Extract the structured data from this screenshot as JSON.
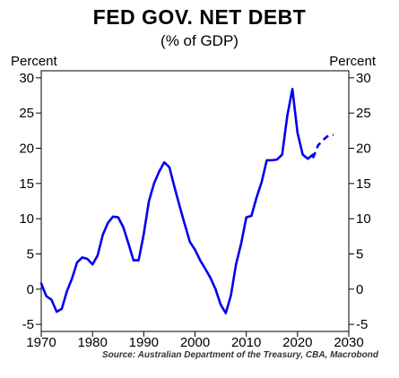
{
  "title": "FED GOV. NET DEBT",
  "subtitle": "(% of GDP)",
  "ylabel_left": "Percent",
  "ylabel_right": "Percent",
  "source": "Source: Australian Department of the Treasury, CBA, Macrobond",
  "chart_data": {
    "type": "line",
    "xlim": [
      1970,
      2030
    ],
    "ylim": [
      -6,
      31
    ],
    "x_ticks": [
      1970,
      1980,
      1990,
      2000,
      2010,
      2020,
      2030
    ],
    "y_ticks": [
      -5,
      0,
      5,
      10,
      15,
      20,
      25,
      30
    ],
    "grid": false,
    "line_color": "#0000ee",
    "series": [
      {
        "style": "solid",
        "x": [
          1970,
          1971,
          1972,
          1973,
          1974,
          1975,
          1976,
          1977,
          1978,
          1979,
          1980,
          1981,
          1982,
          1983,
          1984,
          1985,
          1986,
          1987,
          1988,
          1989,
          1990,
          1991,
          1992,
          1993,
          1994,
          1995,
          1996,
          1997,
          1998,
          1999,
          2000,
          2001,
          2002,
          2003,
          2004,
          2005,
          2006,
          2007,
          2008,
          2009,
          2010,
          2011,
          2012,
          2013,
          2014,
          2015,
          2016,
          2017,
          2018,
          2019,
          2020,
          2021,
          2022,
          2023
        ],
        "y": [
          0.8,
          -1.0,
          -1.5,
          -3.2,
          -2.8,
          -0.3,
          1.5,
          3.8,
          4.5,
          4.3,
          3.5,
          4.8,
          7.7,
          9.4,
          10.3,
          10.2,
          8.8,
          6.5,
          4.1,
          4.1,
          7.8,
          12.5,
          15.0,
          16.7,
          18.0,
          17.3,
          14.5,
          11.8,
          9.2,
          6.7,
          5.6,
          4.1,
          2.9,
          1.6,
          0.0,
          -2.2,
          -3.4,
          -0.9,
          3.5,
          6.5,
          10.2,
          10.4,
          13.0,
          15.2,
          18.3,
          18.3,
          18.4,
          19.1,
          24.6,
          28.4,
          22.2,
          19.1,
          18.5,
          19.1
        ]
      },
      {
        "style": "dashed",
        "x": [
          2023,
          2024,
          2025,
          2026,
          2027
        ],
        "y": [
          18.6,
          20.4,
          21.2,
          21.8,
          21.9
        ]
      }
    ]
  }
}
